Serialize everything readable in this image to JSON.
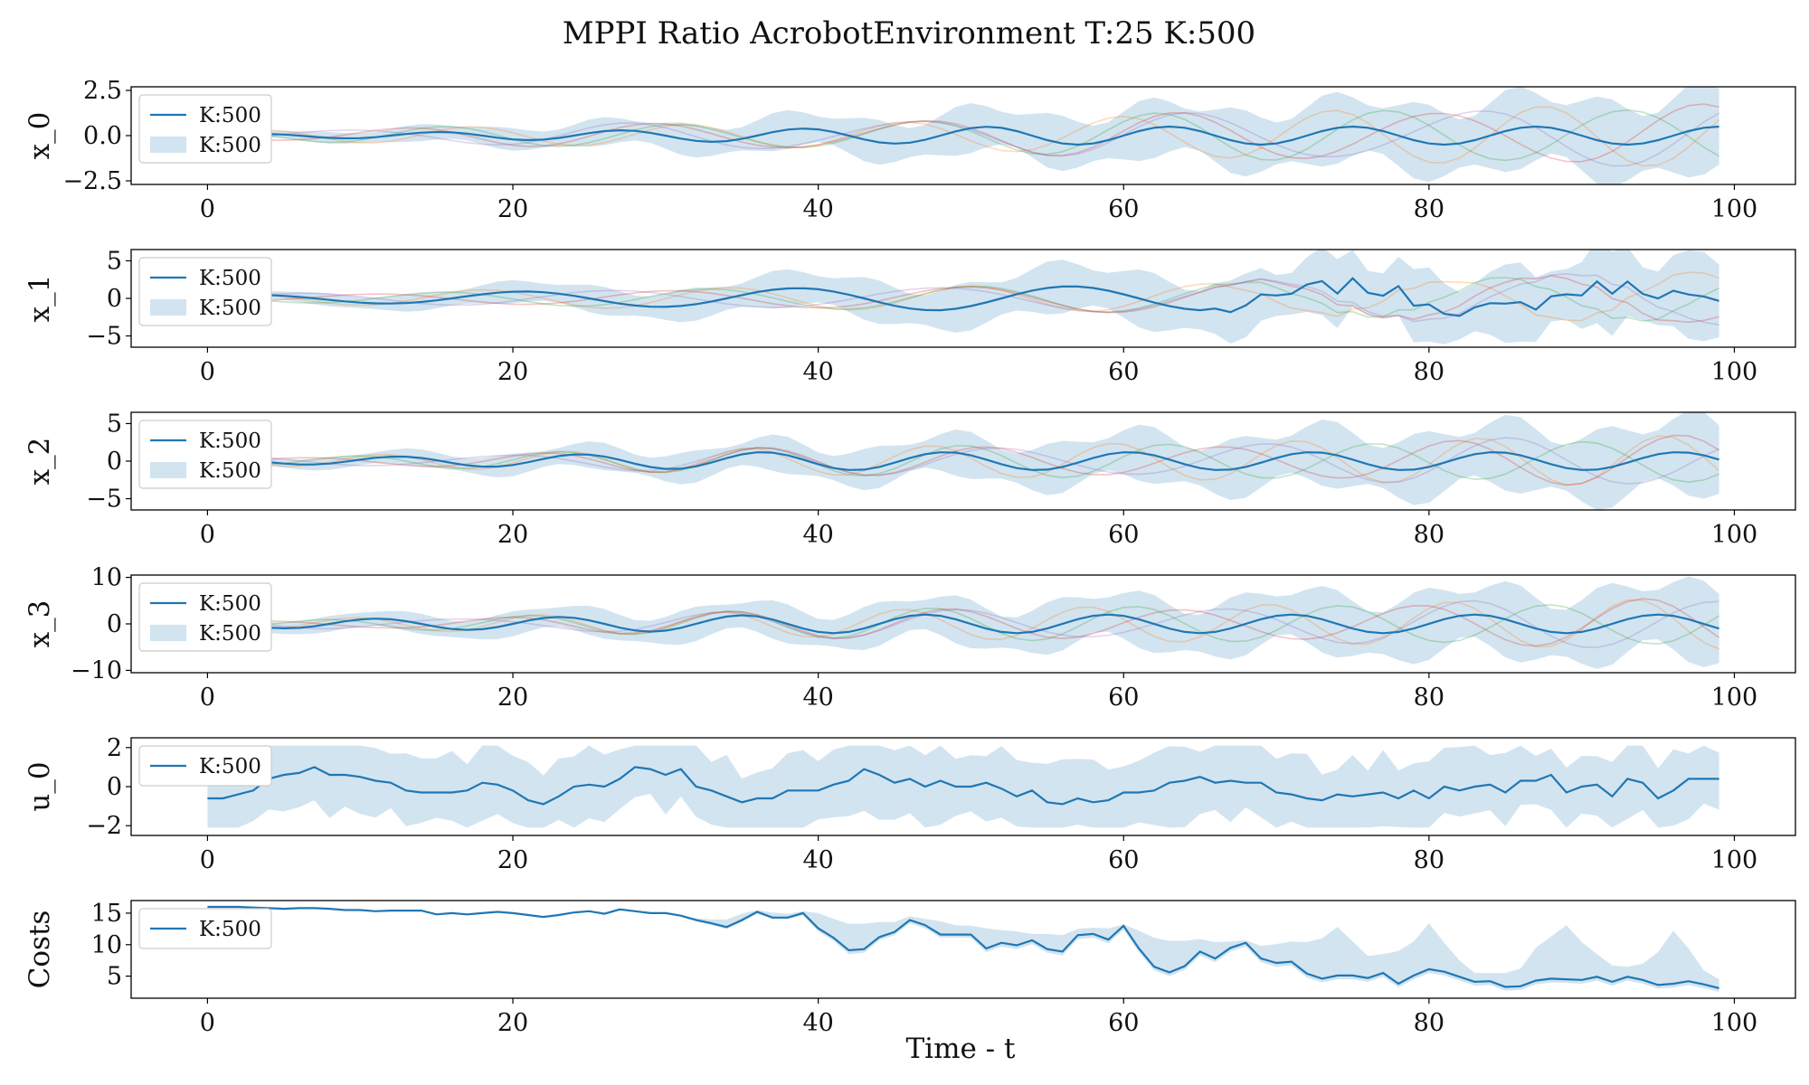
{
  "figure": {
    "title": "MPPI Ratio AcrobotEnvironment T:25 K:500",
    "xlabel": "Time - t",
    "colors": {
      "mean": "#1f77b4",
      "band": "#1f77b4",
      "samples": [
        "#1f77b4",
        "#ff7f0e",
        "#2ca02c",
        "#d62728",
        "#9467bd"
      ]
    }
  },
  "chart_data": [
    {
      "type": "line",
      "ylabel": "x_0",
      "xlim": [
        -5,
        104
      ],
      "ylim": [
        -2.7,
        2.7
      ],
      "yticks": [
        -2.5,
        0.0,
        2.5
      ],
      "ytick_labels": [
        "−2.5",
        "0.0",
        "2.5"
      ],
      "xticks": [
        0,
        20,
        40,
        60,
        80,
        100
      ],
      "xtick_labels": [
        "0",
        "20",
        "40",
        "60",
        "80",
        "100"
      ],
      "legend": [
        "K:500",
        "K:500"
      ],
      "legend_loc": "upper left",
      "mean_curve": {
        "kind": "oscillation",
        "amp": 0.08,
        "amp_growth": 0.32,
        "period": 12,
        "amp_cap": 0.5,
        "drift": 0.0
      },
      "band": {
        "base": 0.12,
        "growth": 2.0,
        "mod": 0.3,
        "period": 6
      },
      "samples": {
        "count": 4,
        "amp_growth": 1.45,
        "period": 14
      }
    },
    {
      "type": "line",
      "ylabel": "x_1",
      "xlim": [
        -5,
        104
      ],
      "ylim": [
        -6.5,
        6.5
      ],
      "yticks": [
        -5,
        0,
        5
      ],
      "ytick_labels": [
        "−5",
        "0",
        "5"
      ],
      "xticks": [
        0,
        20,
        40,
        60,
        80,
        100
      ],
      "xtick_labels": [
        "0",
        "20",
        "40",
        "60",
        "80",
        "100"
      ],
      "legend": [
        "K:500",
        "K:500"
      ],
      "legend_loc": "upper left",
      "mean_curve": {
        "kind": "oscillation_then_jumpy",
        "amp": 0.4,
        "amp_growth": 1.0,
        "period": 18,
        "amp_cap": 1.6,
        "jump_after": 65
      },
      "band": {
        "base": 0.4,
        "growth": 4.5,
        "mod": 0.3,
        "period": 6
      },
      "samples": {
        "count": 4,
        "amp_growth": 3.0,
        "period": 16
      }
    },
    {
      "type": "line",
      "ylabel": "x_2",
      "xlim": [
        -5,
        104
      ],
      "ylim": [
        -6.5,
        6.5
      ],
      "yticks": [
        -5,
        0,
        5
      ],
      "ytick_labels": [
        "−5",
        "0",
        "5"
      ],
      "xticks": [
        0,
        20,
        40,
        60,
        80,
        100
      ],
      "xtick_labels": [
        "0",
        "20",
        "40",
        "60",
        "80",
        "100"
      ],
      "legend": [
        "K:500",
        "K:500"
      ],
      "legend_loc": "upper left",
      "mean_curve": {
        "kind": "oscillation",
        "amp": 0.3,
        "amp_growth": 1.0,
        "period": 12,
        "amp_cap": 1.2,
        "drift": 0.0
      },
      "band": {
        "base": 0.4,
        "growth": 4.2,
        "mod": 0.35,
        "period": 6
      },
      "samples": {
        "count": 4,
        "amp_growth": 2.8,
        "period": 12
      }
    },
    {
      "type": "line",
      "ylabel": "x_3",
      "xlim": [
        -5,
        104
      ],
      "ylim": [
        -10.5,
        10.5
      ],
      "yticks": [
        -10,
        0,
        10
      ],
      "ytick_labels": [
        "−10",
        "0",
        "10"
      ],
      "xticks": [
        0,
        20,
        40,
        60,
        80,
        100
      ],
      "xtick_labels": [
        "0",
        "20",
        "40",
        "60",
        "80",
        "100"
      ],
      "legend": [
        "K:500",
        "K:500"
      ],
      "legend_loc": "upper left",
      "mean_curve": {
        "kind": "oscillation",
        "amp": 0.8,
        "amp_growth": 1.2,
        "period": 12,
        "amp_cap": 2.0,
        "drift": 0.0
      },
      "band": {
        "base": 1.0,
        "growth": 6.5,
        "mod": 0.35,
        "period": 6
      },
      "samples": {
        "count": 4,
        "amp_growth": 4.5,
        "period": 12
      }
    },
    {
      "type": "line",
      "ylabel": "u_0",
      "xlim": [
        -5,
        104
      ],
      "ylim": [
        -2.5,
        2.5
      ],
      "yticks": [
        -2,
        0,
        2
      ],
      "ytick_labels": [
        "−2",
        "0",
        "2"
      ],
      "xticks": [
        0,
        20,
        40,
        60,
        80,
        100
      ],
      "xtick_labels": [
        "0",
        "20",
        "40",
        "60",
        "80",
        "100"
      ],
      "legend": [
        "K:500"
      ],
      "legend_loc": "upper left",
      "mean_values": [
        -0.6,
        -0.6,
        -0.4,
        -0.2,
        0.4,
        0.6,
        0.7,
        1.0,
        0.6,
        0.6,
        0.5,
        0.3,
        0.2,
        -0.2,
        -0.3,
        -0.3,
        -0.3,
        -0.2,
        0.2,
        0.1,
        -0.2,
        -0.7,
        -0.9,
        -0.5,
        0.0,
        0.1,
        0.0,
        0.4,
        1.0,
        0.9,
        0.6,
        0.9,
        0.0,
        -0.2,
        -0.5,
        -0.8,
        -0.6,
        -0.6,
        -0.2,
        -0.2,
        -0.2,
        0.1,
        0.3,
        0.9,
        0.6,
        0.2,
        0.4,
        0.0,
        0.3,
        0.0,
        0.0,
        0.2,
        -0.1,
        -0.5,
        -0.2,
        -0.8,
        -0.9,
        -0.6,
        -0.8,
        -0.7,
        -0.3,
        -0.3,
        -0.2,
        0.2,
        0.3,
        0.5,
        0.2,
        0.3,
        0.2,
        0.2,
        -0.3,
        -0.4,
        -0.6,
        -0.7,
        -0.4,
        -0.5,
        -0.4,
        -0.3,
        -0.6,
        -0.2,
        -0.6,
        0.0,
        -0.2,
        0.0,
        0.1,
        -0.3,
        0.3,
        0.3,
        0.6,
        -0.3,
        0.0,
        0.1,
        -0.5,
        0.4,
        0.2,
        -0.6,
        -0.2,
        0.4,
        0.4,
        0.4
      ],
      "band": {
        "kind": "saturated",
        "upper": 2.1,
        "lower": -2.1,
        "jitter": 0.6
      }
    },
    {
      "type": "line",
      "ylabel": "Costs",
      "xlim": [
        -5,
        104
      ],
      "ylim": [
        1.5,
        17.0
      ],
      "yticks": [
        5,
        10,
        15
      ],
      "ytick_labels": [
        "5",
        "10",
        "15"
      ],
      "xticks": [
        0,
        20,
        40,
        60,
        80,
        100
      ],
      "xtick_labels": [
        "0",
        "20",
        "40",
        "60",
        "80",
        "100"
      ],
      "legend": [
        "K:500"
      ],
      "legend_loc": "upper left",
      "mean_values": [
        16.0,
        16.0,
        16.0,
        15.9,
        15.8,
        15.7,
        15.8,
        15.8,
        15.7,
        15.5,
        15.5,
        15.3,
        15.4,
        15.4,
        15.4,
        14.8,
        15.0,
        14.8,
        15.0,
        15.2,
        15.0,
        14.7,
        14.4,
        14.7,
        15.1,
        15.3,
        14.9,
        15.6,
        15.3,
        15.0,
        15.0,
        14.6,
        13.9,
        13.4,
        12.8,
        13.9,
        15.2,
        14.3,
        14.3,
        15.0,
        12.6,
        11.1,
        9.1,
        9.3,
        11.2,
        12.0,
        13.9,
        13.1,
        11.6,
        11.6,
        11.6,
        9.4,
        10.3,
        9.9,
        10.7,
        9.3,
        8.9,
        11.5,
        11.7,
        10.8,
        13.0,
        9.4,
        6.5,
        5.6,
        6.6,
        8.9,
        7.8,
        9.5,
        10.3,
        7.8,
        7.1,
        7.3,
        5.4,
        4.6,
        5.1,
        5.1,
        4.7,
        5.5,
        3.8,
        5.1,
        6.1,
        5.7,
        4.9,
        4.1,
        4.2,
        3.3,
        3.4,
        4.3,
        4.6,
        4.5,
        4.4,
        4.9,
        4.1,
        4.9,
        4.4,
        3.6,
        3.8,
        4.2,
        3.7,
        3.1,
        3.8
      ],
      "band": {
        "kind": "upper_spikes",
        "upper_extra": [
          0,
          0,
          0,
          0,
          0,
          0,
          0,
          0,
          0,
          0,
          0,
          0,
          0,
          0,
          0,
          0,
          0,
          0,
          0,
          0,
          0,
          0,
          0,
          0,
          0,
          0,
          0,
          0,
          0,
          0,
          0,
          0,
          0.3,
          0.6,
          1.2,
          1.0,
          0.3,
          0.8,
          0.6,
          0.3,
          2.4,
          3.0,
          4.2,
          4.0,
          2.4,
          1.6,
          0.6,
          1.0,
          2.1,
          1.5,
          1.4,
          3.2,
          2.0,
          2.2,
          1.0,
          2.4,
          2.6,
          1.0,
          1.0,
          1.8,
          0.2,
          2.8,
          4.6,
          5.0,
          4.0,
          2.0,
          2.6,
          1.0,
          0.4,
          2.0,
          3.0,
          3.2,
          5.0,
          6.4,
          7.7,
          5.4,
          3.5,
          3.0,
          5.2,
          5.4,
          7.3,
          4.6,
          2.6,
          1.4,
          1.3,
          2.2,
          2.8,
          5.2,
          6.7,
          8.6,
          6.0,
          3.6,
          2.6,
          1.6,
          2.6,
          5.2,
          8.4,
          5.2,
          2.2,
          1.4,
          0.5
        ],
        "lower_extra": [
          0,
          0,
          0,
          0,
          0,
          0,
          0,
          0,
          0,
          0,
          0,
          0,
          0,
          0,
          0,
          0,
          0,
          0,
          0,
          0,
          0,
          0,
          0,
          0,
          0,
          0,
          0,
          0,
          0,
          0,
          0,
          0,
          0.2,
          0.3,
          0.3,
          0.3,
          0.3,
          0.3,
          0.3,
          0.3,
          0.5,
          0.5,
          0.6,
          0.6,
          0.5,
          0.5,
          0.5,
          0.5,
          0.5,
          0.5,
          0.5,
          0.6,
          0.6,
          0.6,
          0.6,
          0.6,
          0.6,
          0.6,
          0.6,
          0.6,
          0.6,
          0.6,
          0.6,
          0.6,
          0.6,
          0.6,
          0.6,
          0.6,
          0.6,
          0.6,
          0.6,
          0.6,
          0.6,
          0.6,
          0.6,
          0.6,
          0.6,
          0.6,
          0.6,
          0.6,
          0.6,
          0.6,
          0.6,
          0.6,
          0.6,
          0.6,
          0.6,
          0.6,
          0.6,
          0.6,
          0.6,
          0.6,
          0.6,
          0.6,
          0.6,
          0.6,
          0.6,
          0.6,
          0.6,
          0.6,
          0.6
        ]
      }
    }
  ]
}
